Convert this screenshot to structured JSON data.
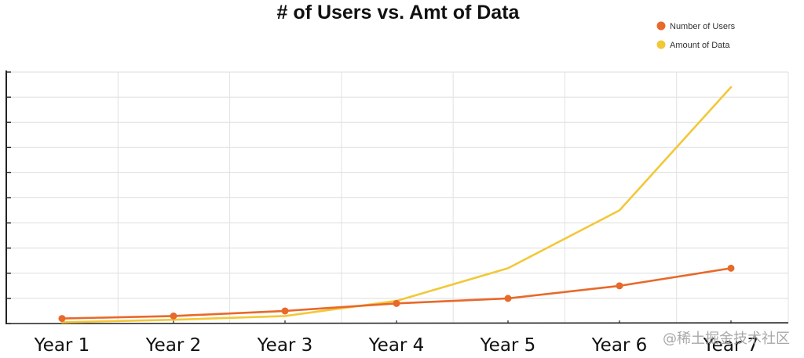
{
  "chart_data": {
    "type": "line",
    "title": "# of Users vs. Amt of Data",
    "categories": [
      "Year 1",
      "Year 2",
      "Year 3",
      "Year 4",
      "Year 5",
      "Year 6",
      "Year 7"
    ],
    "series": [
      {
        "name": "Number of Users",
        "color": "#e8692a",
        "markers": true,
        "values": [
          0.2,
          0.3,
          0.5,
          0.8,
          1.0,
          1.5,
          2.2
        ]
      },
      {
        "name": "Amount of Data",
        "color": "#f2c838",
        "markers": false,
        "values": [
          0.05,
          0.15,
          0.3,
          0.9,
          2.2,
          4.5,
          9.4
        ]
      }
    ],
    "ylim": [
      0,
      10
    ],
    "grid": true,
    "legend_position": "top-right",
    "xlabel": "",
    "ylabel": ""
  },
  "watermark": "@稀土掘金技术社区"
}
